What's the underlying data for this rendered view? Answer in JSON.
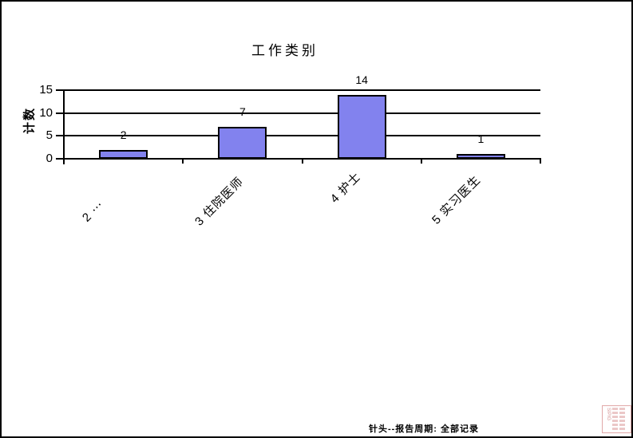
{
  "chart_data": {
    "type": "bar",
    "title": "工作类别",
    "xlabel": "",
    "ylabel": "计数",
    "categories": [
      "2 ⋯",
      "3 住院医师",
      "4 护士",
      "5 实习医生"
    ],
    "values": [
      2,
      7,
      14,
      1
    ],
    "ylim": [
      0,
      15
    ],
    "yticks": [
      0,
      5,
      10,
      15
    ],
    "grid": "horizontal",
    "legend_position": "none",
    "bar_fill": "#8282ee",
    "bar_border": "#000000"
  },
  "footer": {
    "text": "针头--报告周期: 全部记录"
  },
  "stamp": {
    "letters": "SIPIG",
    "color": "#cc8484"
  }
}
